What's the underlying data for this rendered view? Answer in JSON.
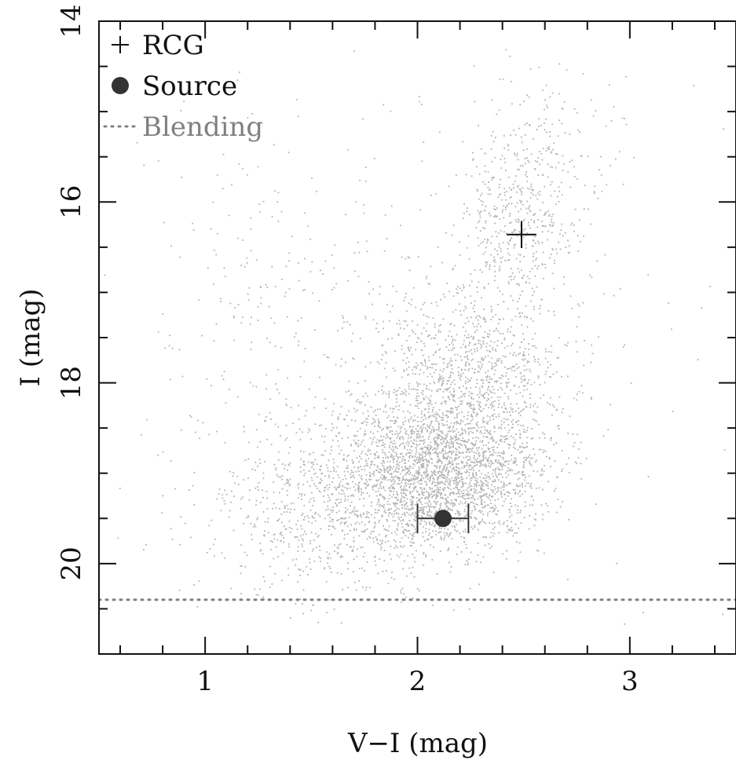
{
  "chart_data": {
    "type": "scatter",
    "xlabel": "V−I (mag)",
    "ylabel": "I (mag)",
    "xlim": [
      0.5,
      3.5
    ],
    "ylim": [
      21.0,
      14.0
    ],
    "y_inverted": true,
    "x_major_ticks": [
      1,
      2,
      3
    ],
    "x_minor_step": 0.2,
    "y_major_ticks": [
      14,
      16,
      18,
      20
    ],
    "y_minor_step": 0.5,
    "grid": false,
    "legend_placement": "top-left",
    "legend": [
      {
        "label": "RCG",
        "marker": "plus",
        "color": "#111111"
      },
      {
        "label": "Source",
        "marker": "filled-circle",
        "color": "#333333"
      },
      {
        "label": "Blending",
        "marker": "dotted-line",
        "color": "#808080"
      }
    ],
    "series": [
      {
        "name": "RCG",
        "type": "point",
        "x": 2.49,
        "y": 16.36,
        "x_err": 0.07,
        "y_err": 0.15,
        "color": "#111111"
      },
      {
        "name": "Source",
        "type": "point",
        "x": 2.12,
        "y": 19.5,
        "x_err_low": 0.12,
        "x_err_high": 0.12,
        "y_err": 0.03,
        "color": "#333333"
      },
      {
        "name": "Blending",
        "type": "hline",
        "y": 20.4,
        "color": "#808080"
      }
    ],
    "background_stars": {
      "description_color": "#b4b4b4",
      "components": [
        {
          "x_mean": 2.08,
          "x_sd": 0.24,
          "y_mean": 19.0,
          "y_sd": 0.42,
          "count": 2600
        },
        {
          "x_mean": 2.25,
          "x_sd": 0.22,
          "y_mean": 17.9,
          "y_sd": 0.55,
          "count": 1100
        },
        {
          "x_mean": 2.47,
          "x_sd": 0.14,
          "y_mean": 16.2,
          "y_sd": 0.45,
          "count": 420
        },
        {
          "x_mean": 2.6,
          "x_sd": 0.18,
          "y_mean": 15.2,
          "y_sd": 0.5,
          "count": 140
        },
        {
          "x_mean": 1.55,
          "x_sd": 0.28,
          "y_mean": 19.4,
          "y_sd": 0.5,
          "count": 650
        },
        {
          "x_mean": 1.35,
          "x_sd": 0.28,
          "y_mean": 17.2,
          "y_sd": 0.8,
          "count": 170
        },
        {
          "x_mean": 1.9,
          "x_sd": 0.8,
          "y_mean": 17.5,
          "y_sd": 1.8,
          "count": 260
        }
      ]
    }
  }
}
